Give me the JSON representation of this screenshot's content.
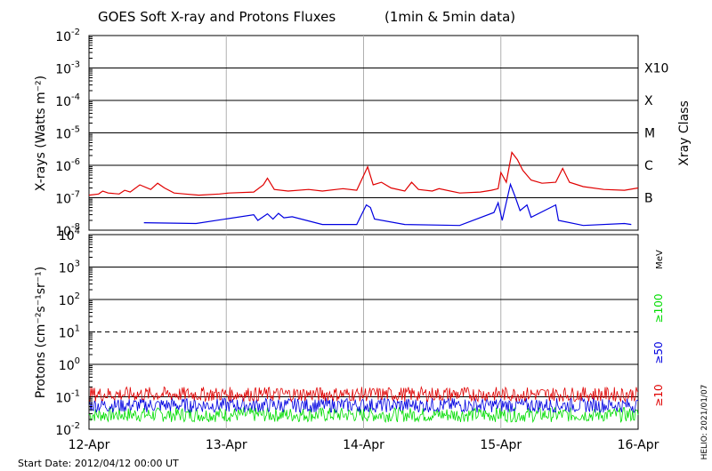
{
  "chart_data": [
    {
      "type": "line",
      "title": "GOES Soft X-ray and Protons Fluxes",
      "subtitle": "(1min & 5min data)",
      "ylabel": "X-rays (Watts m⁻²)",
      "yscale": "log",
      "ylim": [
        1e-08,
        0.01
      ],
      "ytick_exponents": [
        "-2",
        "-3",
        "-4",
        "-5",
        "-6",
        "-7",
        "-8"
      ],
      "right_axis_label": "Xray Class",
      "classes": [
        {
          "label": "X10",
          "flux": 0.001
        },
        {
          "label": "X",
          "flux": 0.0001
        },
        {
          "label": "M",
          "flux": 1e-05
        },
        {
          "label": "C",
          "flux": 1e-06
        },
        {
          "label": "B",
          "flux": 1e-07
        }
      ],
      "x": [
        "12-Apr",
        "13-Apr",
        "14-Apr",
        "15-Apr",
        "16-Apr"
      ],
      "xlim_days": [
        0,
        4
      ],
      "series": [
        {
          "color": "#e00000",
          "points": [
            [
              0,
              1.2e-07
            ],
            [
              0.07,
              1.3e-07
            ],
            [
              0.1,
              1.6e-07
            ],
            [
              0.14,
              1.4e-07
            ],
            [
              0.22,
              1.3e-07
            ],
            [
              0.26,
              1.7e-07
            ],
            [
              0.3,
              1.5e-07
            ],
            [
              0.37,
              2.5e-07
            ],
            [
              0.45,
              1.8e-07
            ],
            [
              0.5,
              2.8e-07
            ],
            [
              0.55,
              2e-07
            ],
            [
              0.62,
              1.4e-07
            ],
            [
              0.7,
              1.3e-07
            ],
            [
              0.8,
              1.2e-07
            ],
            [
              0.95,
              1.3e-07
            ],
            [
              1.02,
              1.4e-07
            ],
            [
              1.2,
              1.5e-07
            ],
            [
              1.27,
              2.5e-07
            ],
            [
              1.3,
              4e-07
            ],
            [
              1.35,
              1.8e-07
            ],
            [
              1.45,
              1.6e-07
            ],
            [
              1.6,
              1.8e-07
            ],
            [
              1.7,
              1.6e-07
            ],
            [
              1.85,
              1.9e-07
            ],
            [
              1.95,
              1.7e-07
            ],
            [
              2.03,
              9e-07
            ],
            [
              2.07,
              2.5e-07
            ],
            [
              2.13,
              3e-07
            ],
            [
              2.2,
              2e-07
            ],
            [
              2.3,
              1.6e-07
            ],
            [
              2.35,
              3e-07
            ],
            [
              2.4,
              1.8e-07
            ],
            [
              2.5,
              1.6e-07
            ],
            [
              2.55,
              1.9e-07
            ],
            [
              2.7,
              1.4e-07
            ],
            [
              2.85,
              1.5e-07
            ],
            [
              2.93,
              1.7e-07
            ],
            [
              2.98,
              1.9e-07
            ],
            [
              3.0,
              6e-07
            ],
            [
              3.04,
              3e-07
            ],
            [
              3.08,
              2.5e-06
            ],
            [
              3.12,
              1.5e-06
            ],
            [
              3.16,
              7e-07
            ],
            [
              3.22,
              3.5e-07
            ],
            [
              3.3,
              2.8e-07
            ],
            [
              3.4,
              3e-07
            ],
            [
              3.45,
              8e-07
            ],
            [
              3.5,
              3e-07
            ],
            [
              3.6,
              2.2e-07
            ],
            [
              3.75,
              1.8e-07
            ],
            [
              3.9,
              1.7e-07
            ],
            [
              4.0,
              2e-07
            ]
          ]
        },
        {
          "color": "#0000e0",
          "points": [
            [
              0.4,
              1.7e-08
            ],
            [
              0.78,
              1.6e-08
            ],
            [
              1.2,
              3e-08
            ],
            [
              1.23,
              2e-08
            ],
            [
              1.3,
              3.2e-08
            ],
            [
              1.34,
              2.2e-08
            ],
            [
              1.38,
              3.3e-08
            ],
            [
              1.42,
              2.4e-08
            ],
            [
              1.48,
              2.6e-08
            ],
            [
              1.7,
              1.5e-08
            ],
            [
              1.95,
              1.5e-08
            ],
            [
              2.02,
              6e-08
            ],
            [
              2.05,
              5e-08
            ],
            [
              2.08,
              2.2e-08
            ],
            [
              2.3,
              1.5e-08
            ],
            [
              2.7,
              1.4e-08
            ],
            [
              2.95,
              3.5e-08
            ],
            [
              2.98,
              7e-08
            ],
            [
              3.01,
              2e-08
            ],
            [
              3.07,
              2.6e-07
            ],
            [
              3.1,
              1.2e-07
            ],
            [
              3.14,
              4e-08
            ],
            [
              3.19,
              6e-08
            ],
            [
              3.22,
              2.5e-08
            ],
            [
              3.4,
              6e-08
            ],
            [
              3.42,
              2e-08
            ],
            [
              3.6,
              1.4e-08
            ],
            [
              3.9,
              1.6e-08
            ],
            [
              3.95,
              1.5e-08
            ]
          ]
        }
      ]
    },
    {
      "type": "line",
      "ylabel": "Protons (cm⁻²s⁻¹sr⁻¹)",
      "yscale": "log",
      "ylim": [
        0.01,
        10000
      ],
      "ytick_labels": [
        {
          "base": "10",
          "exp": "4"
        },
        {
          "base": "10",
          "exp": "3"
        },
        {
          "base": "10",
          "exp": "2"
        },
        {
          "base": "10",
          "exp": "1"
        },
        {
          "base": "10",
          "exp": "0"
        },
        {
          "base": "10",
          "exp": "-1"
        },
        {
          "base": "10",
          "exp": "-2"
        }
      ],
      "ytick_numbers": [
        10000,
        1000,
        100,
        10,
        1,
        0.1,
        0.01
      ],
      "threshold_line": 10,
      "energy_unit": "MeV",
      "x": [
        "12-Apr",
        "13-Apr",
        "14-Apr",
        "15-Apr",
        "16-Apr"
      ],
      "xlim_days": [
        0,
        4
      ],
      "series": [
        {
          "name": "≥10",
          "color": "#e00000",
          "level": 0.12
        },
        {
          "name": "≥50",
          "color": "#0000e0",
          "level": 0.055
        },
        {
          "name": "≥100",
          "color": "#00dd00",
          "level": 0.028
        }
      ]
    }
  ],
  "footer": {
    "start_date": "Start Date: 2012/04/12 00:00 UT",
    "credit": "HELIO: 2021/01/07"
  }
}
